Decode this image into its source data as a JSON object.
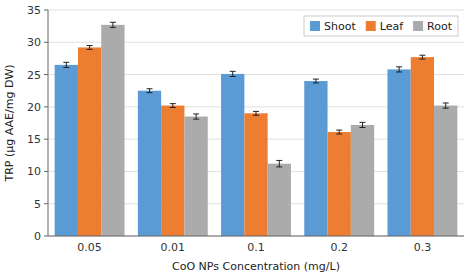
{
  "chart_data": {
    "type": "bar",
    "categories": [
      "0.05",
      "0.01",
      "0.1",
      "0.2",
      "0.3"
    ],
    "series": [
      {
        "name": "Shoot",
        "color": "#5B9BD5",
        "values": [
          26.5,
          22.5,
          25.1,
          24.0,
          25.8
        ],
        "errors": [
          0.4,
          0.3,
          0.4,
          0.3,
          0.4
        ]
      },
      {
        "name": "Leaf",
        "color": "#ED7D31",
        "values": [
          29.2,
          20.2,
          19.0,
          16.1,
          27.7
        ],
        "errors": [
          0.3,
          0.3,
          0.3,
          0.3,
          0.3
        ]
      },
      {
        "name": "Root",
        "color": "#ABABAB",
        "values": [
          32.7,
          18.5,
          11.2,
          17.2,
          20.2
        ],
        "errors": [
          0.4,
          0.4,
          0.5,
          0.4,
          0.4
        ]
      }
    ],
    "xlabel": "CoO NPs Concentration (mg/L)",
    "ylabel": "TRP (μg AAE/mg DW)",
    "ylim": [
      0,
      35
    ],
    "yticks": [
      0,
      5,
      10,
      15,
      20,
      25,
      30,
      35
    ],
    "grid": true,
    "legend": "upper right"
  }
}
